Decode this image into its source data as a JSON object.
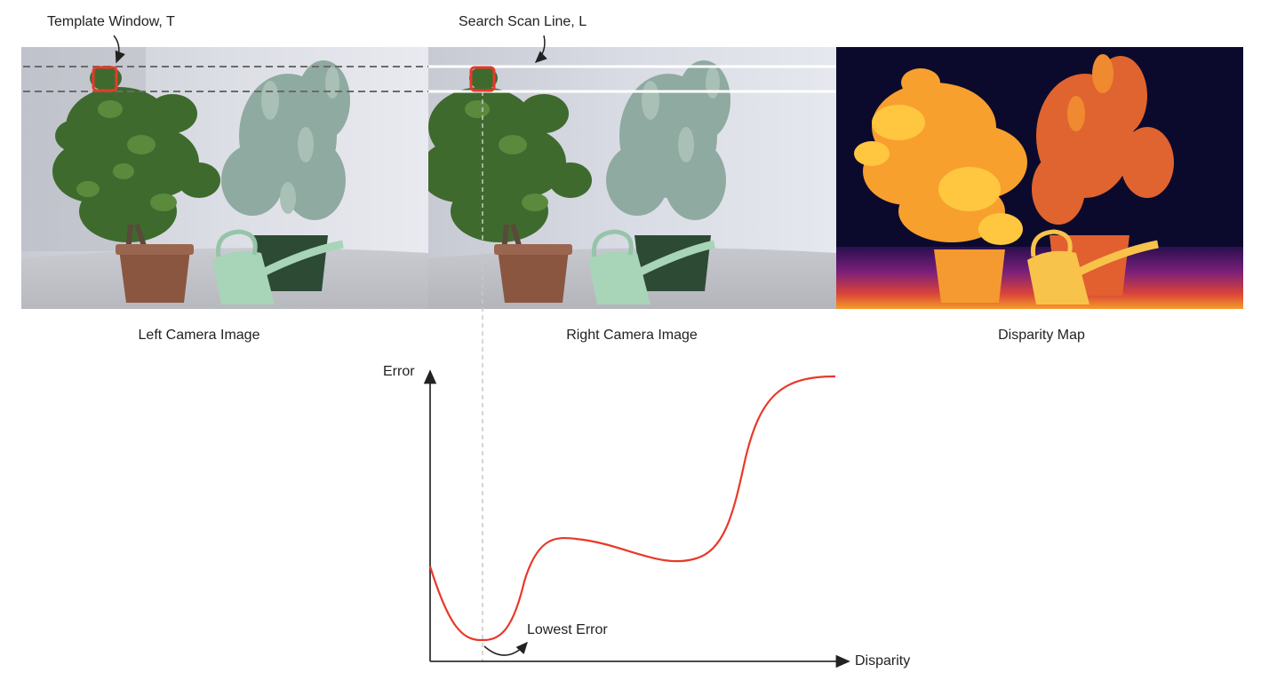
{
  "annotations": {
    "template_window": "Template Window, T",
    "search_scan_line": "Search Scan Line, L",
    "lowest_error": "Lowest Error"
  },
  "panels": {
    "left": "Left Camera Image",
    "right": "Right Camera Image",
    "disparity": "Disparity Map"
  },
  "plot": {
    "y_axis_label": "Error",
    "x_axis_label": "Disparity"
  },
  "colors": {
    "curve": "#e8392b",
    "template_box": "#e8392b",
    "axis": "#333333"
  }
}
